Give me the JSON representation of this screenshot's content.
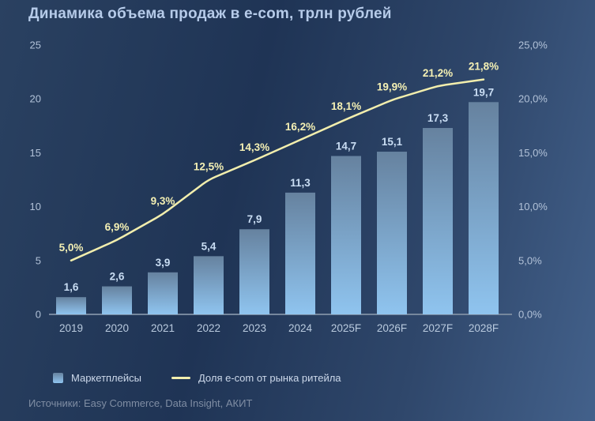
{
  "title": "Динамика объема продаж в e-com, трлн рублей",
  "source": "Источники: Easy Commerce, Data Insight, АКИТ",
  "legend": {
    "bar_label": "Маркетплейсы",
    "line_label": "Доля e-com от рынка ритейла"
  },
  "colors": {
    "background_top_left": "#2a4161",
    "background_center": "#1f3455",
    "background_bottom_right": "#43618b",
    "bar_gradient_top": "#66829f",
    "bar_gradient_bottom": "#8fc4ef",
    "line": "#f2eead",
    "bar_value_label": "#c9ddf3",
    "share_value_label": "#f4f0b4",
    "axis_text": "#b2c2d8",
    "x_axis_text": "#b9cade",
    "axis_line": "#76879d",
    "title_text": "#b6cbe9",
    "legend_text": "#ccd8ea",
    "source_text": "#7f8da3"
  },
  "chart_data": {
    "type": "bar",
    "title": "Динамика объема продаж в e-com, трлн рублей",
    "categories": [
      "2019",
      "2020",
      "2021",
      "2022",
      "2023",
      "2024",
      "2025F",
      "2026F",
      "2027F",
      "2028F"
    ],
    "series": [
      {
        "name": "Маркетплейсы",
        "type": "bar",
        "unit": "трлн рублей",
        "values": [
          1.6,
          2.6,
          3.9,
          5.4,
          7.9,
          11.3,
          14.7,
          15.1,
          17.3,
          19.7
        ],
        "labels": [
          "1,6",
          "2,6",
          "3,9",
          "5,4",
          "7,9",
          "11,3",
          "14,7",
          "15,1",
          "17,3",
          "19,7"
        ]
      },
      {
        "name": "Доля e-com от рынка ритейла",
        "type": "line",
        "unit": "%",
        "values": [
          5.0,
          6.9,
          9.3,
          12.5,
          14.3,
          16.2,
          18.1,
          19.9,
          21.2,
          21.8
        ],
        "labels": [
          "5,0%",
          "6,9%",
          "9,3%",
          "12,5%",
          "14,3%",
          "16,2%",
          "18,1%",
          "19,9%",
          "21,2%",
          "21,8%"
        ]
      }
    ],
    "left_axis": {
      "range": [
        0,
        25
      ],
      "ticks": [
        0,
        5,
        10,
        15,
        20,
        25
      ],
      "labels": [
        "0",
        "5",
        "10",
        "15",
        "20",
        "25"
      ]
    },
    "right_axis": {
      "range": [
        0,
        25
      ],
      "ticks": [
        0,
        5,
        10,
        15,
        20,
        25
      ],
      "labels": [
        "0,0%",
        "5,0%",
        "10,0%",
        "15,0%",
        "20,0%",
        "25,0%"
      ]
    },
    "grid": false,
    "legend_position": "bottom"
  }
}
